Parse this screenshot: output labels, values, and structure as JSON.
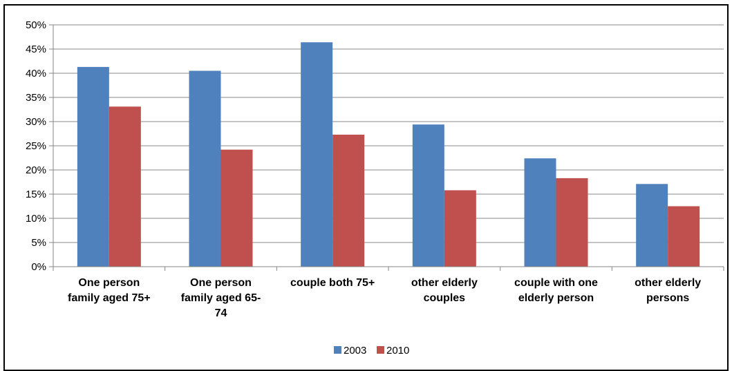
{
  "chart_data": {
    "type": "bar",
    "categories": [
      "One person family aged  75+",
      "One person family aged  65-74",
      "couple both 75+",
      "other elderly couples",
      "couple with one elderly person",
      "other elderly persons"
    ],
    "category_label_lines": [
      [
        "One person",
        "family aged  75+"
      ],
      [
        "One person",
        "family aged  65-",
        "74"
      ],
      [
        "couple both 75+"
      ],
      [
        "other elderly",
        "couples"
      ],
      [
        "couple with one",
        "elderly person"
      ],
      [
        "other elderly",
        "persons"
      ]
    ],
    "series": [
      {
        "name": "2003",
        "color": "#4F81BD",
        "values": [
          41.3,
          40.5,
          46.4,
          29.4,
          22.4,
          17.1
        ]
      },
      {
        "name": "2010",
        "color": "#C0504D",
        "values": [
          33.1,
          24.2,
          27.3,
          15.8,
          18.3,
          12.5
        ]
      }
    ],
    "y_ticks": [
      "0%",
      "5%",
      "10%",
      "15%",
      "20%",
      "25%",
      "30%",
      "35%",
      "40%",
      "45%",
      "50%"
    ],
    "ylim": [
      0,
      50
    ],
    "y_unit": "%",
    "grid": true,
    "legend": "bottom",
    "title": "",
    "xlabel": "",
    "ylabel": ""
  }
}
